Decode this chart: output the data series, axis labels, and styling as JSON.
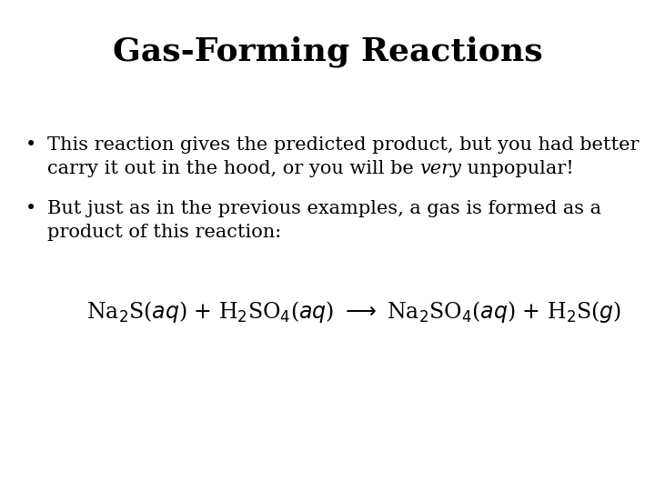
{
  "title": "Gas-Forming Reactions",
  "title_fontsize": 26,
  "title_fontweight": "bold",
  "background_color": "#ffffff",
  "text_color": "#000000",
  "bullet1_line1": "This reaction gives the predicted product, but you had better",
  "bullet1_line2_pre": "carry it out in the hood, or you will be ",
  "bullet1_italic": "very",
  "bullet1_line2_post": " unpopular!",
  "bullet2_line1": "But just as in the previous examples, a gas is formed as a",
  "bullet2_line2": "product of this reaction:",
  "bullet_fontsize": 15,
  "equation_fontsize": 15,
  "fig_width": 7.2,
  "fig_height": 5.4,
  "dpi": 100
}
